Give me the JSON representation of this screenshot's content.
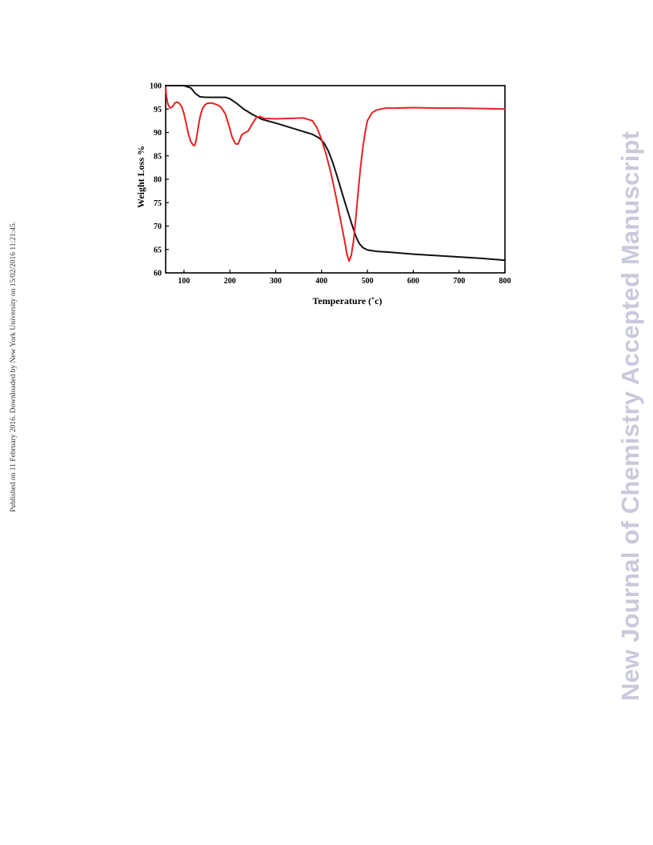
{
  "side_note": "Published on 11 February 2016. Downloaded by New York University on 15/02/2016 11:21:45.",
  "watermark": "New Journal of Chemistry Accepted Manuscript",
  "chart_data": {
    "type": "line",
    "title": "",
    "xlabel": "Temperature (˚c)",
    "ylabel": "Weight Loss %",
    "xlim": [
      60,
      800
    ],
    "ylim": [
      60,
      100
    ],
    "x_ticks": [
      100,
      200,
      300,
      400,
      500,
      600,
      700,
      800
    ],
    "y_ticks": [
      60,
      65,
      70,
      75,
      80,
      85,
      90,
      95,
      100
    ],
    "grid": false,
    "legend": "none",
    "colors": {
      "tga": "#111111",
      "dtg": "#e52222"
    },
    "series": [
      {
        "key": "tga",
        "x": [
          60,
          80,
          100,
          115,
          125,
          135,
          150,
          170,
          190,
          200,
          215,
          230,
          250,
          270,
          300,
          330,
          360,
          380,
          395,
          405,
          415,
          425,
          435,
          445,
          455,
          465,
          475,
          482,
          490,
          500,
          520,
          550,
          600,
          650,
          700,
          750,
          800
        ],
        "y": [
          100,
          100,
          100,
          99.5,
          98.3,
          97.6,
          97.5,
          97.5,
          97.5,
          97.2,
          96.2,
          95.0,
          93.8,
          92.8,
          92.0,
          91.1,
          90.2,
          89.6,
          88.8,
          87.8,
          86.0,
          83.4,
          80.3,
          77.0,
          73.8,
          70.7,
          67.8,
          66.3,
          65.4,
          64.9,
          64.6,
          64.4,
          64.0,
          63.7,
          63.4,
          63.1,
          62.7
        ]
      },
      {
        "key": "dtg",
        "x": [
          60,
          62,
          65,
          70,
          75,
          80,
          85,
          90,
          95,
          100,
          105,
          110,
          115,
          120,
          123,
          126,
          130,
          135,
          140,
          145,
          150,
          160,
          170,
          180,
          190,
          198,
          205,
          212,
          218,
          222,
          226,
          232,
          240,
          250,
          258,
          265,
          275,
          300,
          330,
          360,
          380,
          390,
          400,
          410,
          420,
          430,
          440,
          450,
          455,
          460,
          465,
          470,
          475,
          480,
          485,
          490,
          495,
          500,
          510,
          520,
          540,
          560,
          600,
          650,
          700,
          750,
          800
        ],
        "y": [
          99.5,
          97.5,
          96.0,
          95.2,
          95.5,
          96.3,
          96.5,
          96.2,
          95.5,
          94.0,
          91.8,
          89.5,
          88.0,
          87.3,
          87.2,
          88.0,
          90.5,
          93.3,
          95.0,
          95.8,
          96.2,
          96.3,
          96.0,
          95.5,
          94.0,
          91.5,
          89.0,
          87.6,
          87.5,
          88.5,
          89.5,
          89.9,
          90.3,
          92.0,
          93.2,
          93.4,
          93.0,
          92.9,
          93.0,
          93.1,
          92.5,
          91.0,
          88.5,
          85.3,
          81.5,
          77.0,
          72.0,
          67.0,
          64.2,
          62.5,
          63.8,
          67.0,
          72.0,
          77.5,
          82.5,
          86.8,
          90.0,
          92.5,
          94.2,
          94.8,
          95.2,
          95.2,
          95.3,
          95.2,
          95.2,
          95.1,
          95.0
        ]
      }
    ]
  }
}
